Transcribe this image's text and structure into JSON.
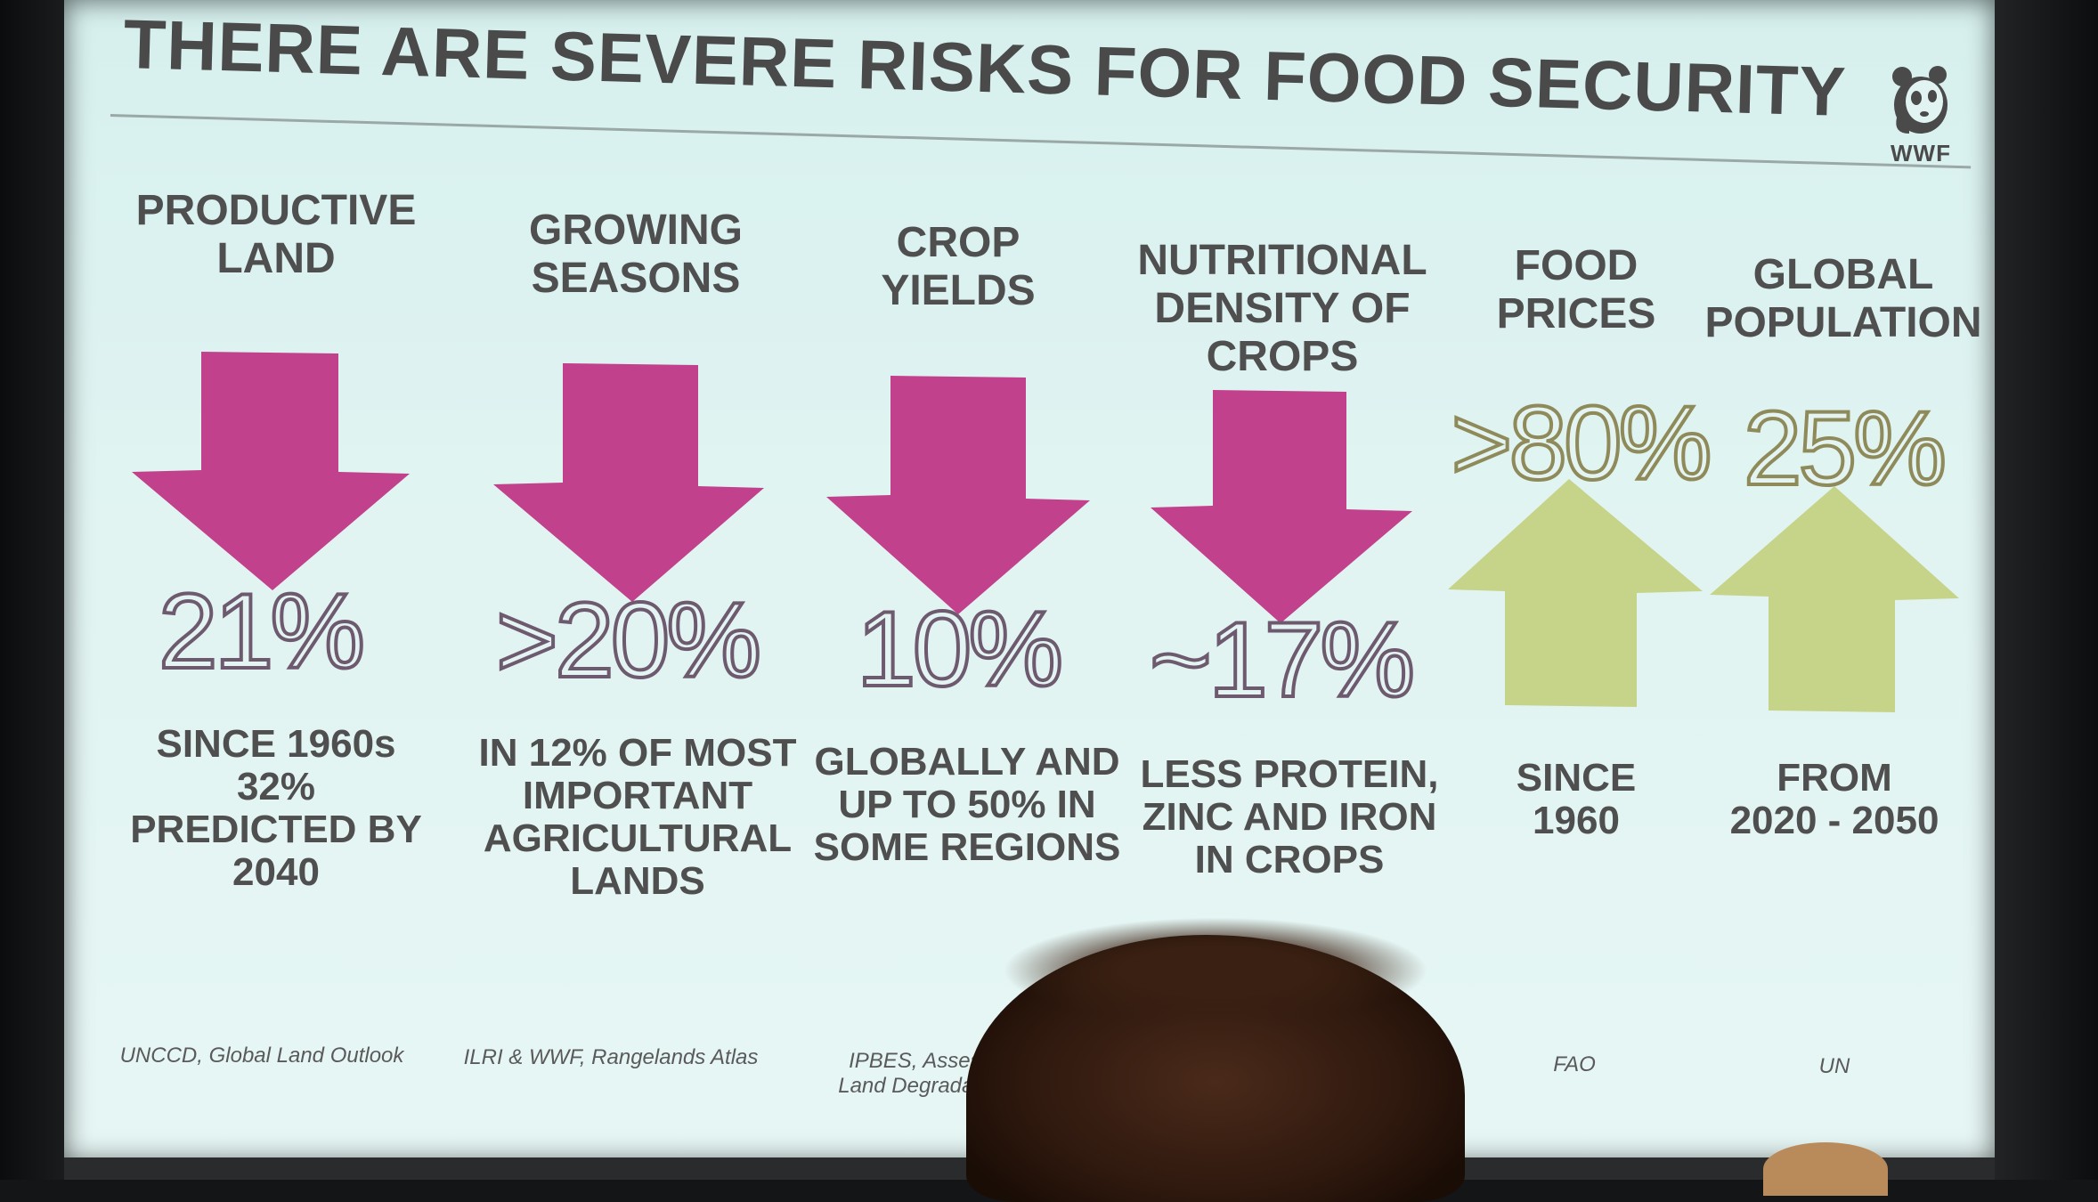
{
  "slide": {
    "title": "THERE ARE SEVERE RISKS FOR FOOD SECURITY",
    "logo_text": "WWF"
  },
  "columns": [
    {
      "heading": "PRODUCTIVE\nLAND",
      "value": "21%",
      "direction": "down",
      "description": "SINCE 1960s 32%\nPREDICTED BY\n2040",
      "source": "UNCCD, Global Land Outlook"
    },
    {
      "heading": "GROWING\nSEASONS",
      "value": ">20%",
      "direction": "down",
      "description": "IN 12% OF MOST\nIMPORTANT\nAGRICULTURAL\nLANDS",
      "source": "ILRI & WWF, Rangelands Atlas"
    },
    {
      "heading": "CROP\nYIELDS",
      "value": "10%",
      "direction": "down",
      "description": "GLOBALLY AND\nUP TO 50% IN\nSOME REGIONS",
      "source": "IPBES, Assessment\nLand Degradation and"
    },
    {
      "heading": "NUTRITIONAL\nDENSITY OF\nCROPS",
      "value": "~17%",
      "direction": "down",
      "description": "LESS PROTEIN,\nZINC AND IRON\nIN CROPS",
      "source": ""
    },
    {
      "heading": "FOOD\nPRICES",
      "value": ">80%",
      "direction": "up",
      "description": "SINCE\n1960",
      "source": "FAO"
    },
    {
      "heading": "GLOBAL\nPOPULATION",
      "value": "25%",
      "direction": "up",
      "description": "FROM\n2020 - 2050",
      "source": "UN"
    }
  ],
  "colors": {
    "down_arrow": "#c2418c",
    "up_arrow": "#c6d48a",
    "screen_background": "#e1f4f2",
    "text": "#4f4f4f"
  }
}
